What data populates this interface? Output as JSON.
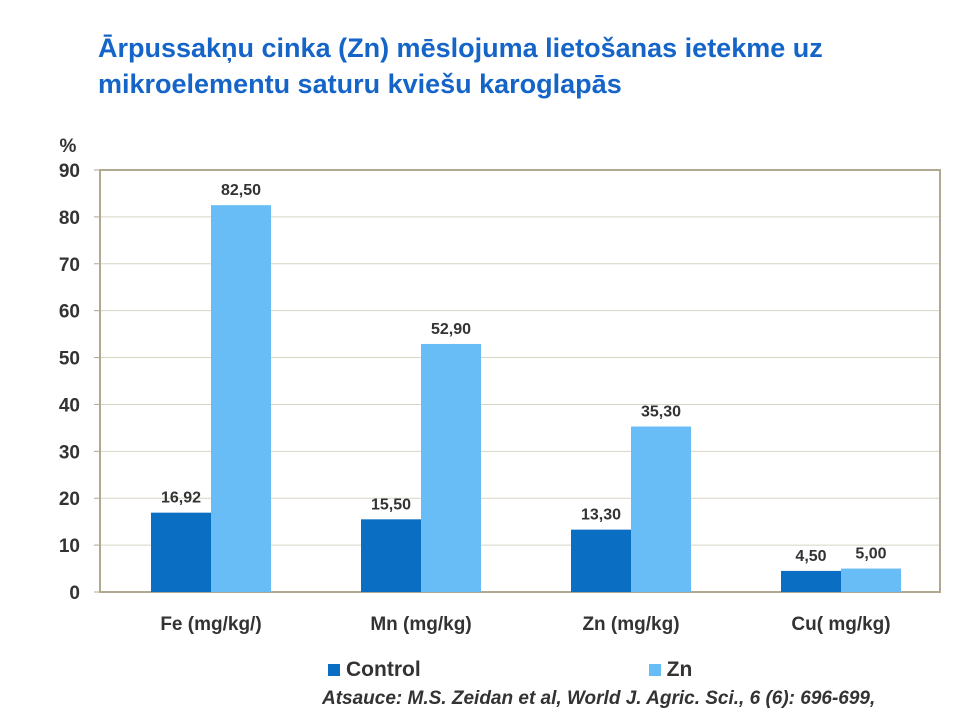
{
  "chart_data": {
    "type": "bar",
    "title": "Ārpussakņu cinka (Zn) mēslojuma lietošanas ietekme uz mikroelementu saturu kviešu karoglapās",
    "ylabel": "%",
    "ylim": [
      0,
      90
    ],
    "yticks": [
      "0",
      "10",
      "20",
      "30",
      "40",
      "50",
      "60",
      "70",
      "80",
      "90"
    ],
    "ytick_values": [
      0,
      10,
      20,
      30,
      40,
      50,
      60,
      70,
      80,
      90
    ],
    "categories": [
      "Fe (mg/kg/)",
      "Mn (mg/kg)",
      "Zn (mg/kg)",
      "Cu( mg/kg)"
    ],
    "series": [
      {
        "name": "Control",
        "color": "#0a6fc2",
        "values": [
          16.92,
          15.5,
          13.3,
          4.5
        ],
        "labels": [
          "16,92",
          "15,50",
          "13,30",
          "4,50"
        ]
      },
      {
        "name": "Zn",
        "color": "#69bdf7",
        "values": [
          82.5,
          52.9,
          35.3,
          5.0
        ],
        "labels": [
          "82,50",
          "52,90",
          "35,30",
          "5,00"
        ]
      }
    ],
    "grid": true,
    "legend_position": "bottom"
  },
  "source_note": "Atsauce: M.S. Zeidan et al, World J. Agric. Sci., 6 (6): 696-699,"
}
